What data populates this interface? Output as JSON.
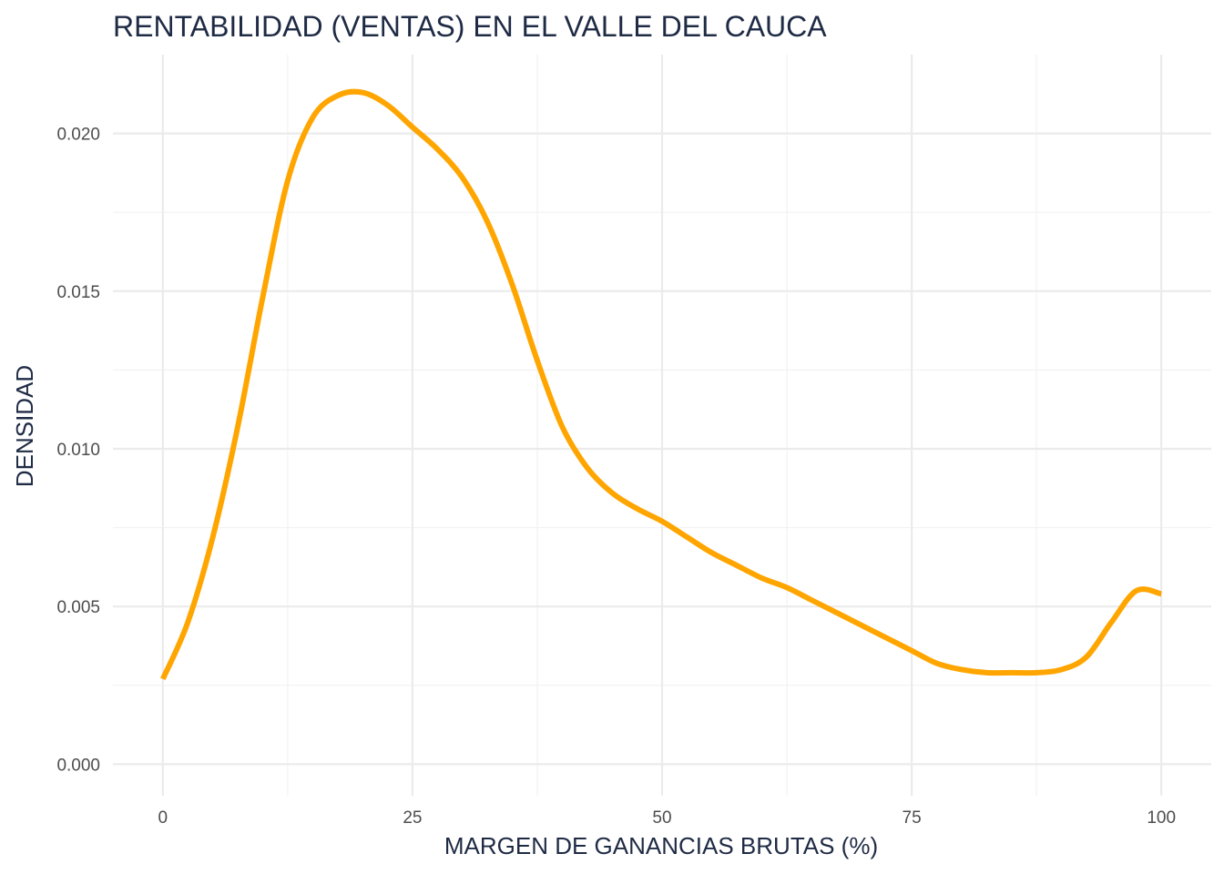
{
  "chart_data": {
    "type": "area",
    "title": "RENTABILIDAD (VENTAS) EN EL VALLE DEL CAUCA",
    "xlabel": "MARGEN DE GANANCIAS BRUTAS (%)",
    "ylabel": "DENSIDAD",
    "xlim": [
      -5,
      105
    ],
    "ylim": [
      -0.001,
      0.0225
    ],
    "x_ticks": [
      0,
      25,
      50,
      75,
      100
    ],
    "x_tick_labels": [
      "0",
      "25",
      "50",
      "75",
      "100"
    ],
    "y_ticks": [
      0.0,
      0.005,
      0.01,
      0.015,
      0.02
    ],
    "y_tick_labels": [
      "0.000",
      "0.005",
      "0.010",
      "0.015",
      "0.020"
    ],
    "grid": true,
    "legend": "none",
    "series": [
      {
        "color": "#FFA500",
        "x": [
          0,
          2.5,
          5,
          7.5,
          10,
          12.5,
          15,
          17.5,
          20,
          22.5,
          25,
          27.5,
          30,
          32.5,
          35,
          37.5,
          40,
          42.5,
          45,
          47.5,
          50,
          52.5,
          55,
          57.5,
          60,
          62.5,
          65,
          67.5,
          70,
          72.5,
          75,
          77.5,
          80,
          82.5,
          85,
          87.5,
          90,
          92.5,
          95,
          97.5,
          100
        ],
        "y": [
          0.0027,
          0.0045,
          0.0072,
          0.0107,
          0.0148,
          0.0185,
          0.0205,
          0.0212,
          0.0213,
          0.0209,
          0.0202,
          0.0195,
          0.0186,
          0.0172,
          0.0152,
          0.0128,
          0.0107,
          0.0094,
          0.0086,
          0.0081,
          0.0077,
          0.0072,
          0.0067,
          0.0063,
          0.0059,
          0.0056,
          0.0052,
          0.0048,
          0.0044,
          0.004,
          0.0036,
          0.0032,
          0.003,
          0.0029,
          0.0029,
          0.0029,
          0.003,
          0.0034,
          0.0045,
          0.0055,
          0.0054
        ]
      }
    ]
  }
}
